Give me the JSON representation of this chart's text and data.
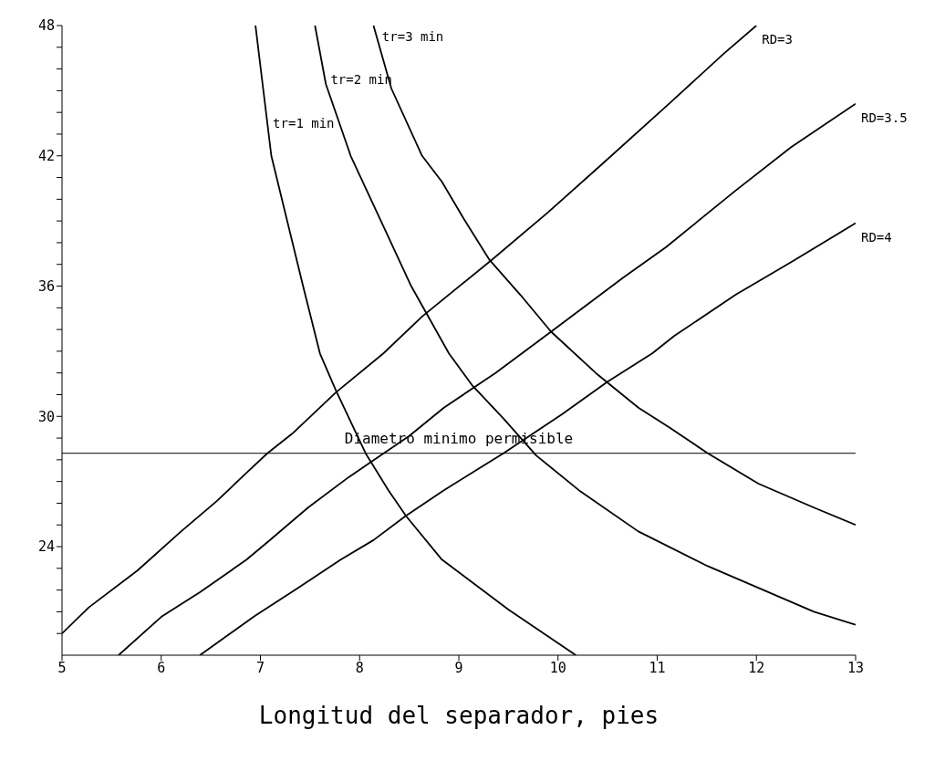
{
  "chart_data": {
    "type": "line",
    "xlabel": "Longitud del separador, pies",
    "xlim": [
      5,
      13
    ],
    "xticks": [
      5,
      6,
      7,
      8,
      9,
      10,
      11,
      12,
      13
    ],
    "ylim": [
      19,
      48
    ],
    "yticks": [
      {
        "value": 20,
        "label": null
      },
      {
        "value": 21,
        "label": null
      },
      {
        "value": 22,
        "label": null
      },
      {
        "value": 23,
        "label": null
      },
      24,
      {
        "value": 25,
        "label": null
      },
      {
        "value": 26,
        "label": null
      },
      {
        "value": 27,
        "label": null
      },
      {
        "value": 28,
        "label": null
      },
      {
        "value": 29,
        "label": null
      },
      30,
      {
        "value": 31,
        "label": null
      },
      {
        "value": 32,
        "label": null
      },
      {
        "value": 33,
        "label": null
      },
      {
        "value": 34,
        "label": null
      },
      {
        "value": 35,
        "label": null
      },
      36,
      {
        "value": 37,
        "label": null
      },
      {
        "value": 38,
        "label": null
      },
      {
        "value": 39,
        "label": null
      },
      {
        "value": 40,
        "label": null
      },
      {
        "value": 41,
        "label": null
      },
      42,
      {
        "value": 43,
        "label": null
      },
      {
        "value": 44,
        "label": null
      },
      {
        "value": 45,
        "label": null
      },
      {
        "value": 46,
        "label": null
      },
      {
        "value": 47,
        "label": null
      },
      48
    ],
    "grid": false,
    "marker": "none",
    "line_style": "solid",
    "ref_lines": [
      {
        "axis": "y",
        "value": 28.3,
        "label": "Diametro minimo permisible",
        "color": "#000000"
      }
    ],
    "series": [
      {
        "name": "tr=1 min",
        "color": "#000000",
        "x": [
          6.95,
          7.11,
          7.43,
          7.6,
          7.76,
          8.06,
          8.29,
          8.47,
          8.83,
          9.5,
          10.18
        ],
        "values": [
          48,
          42,
          36,
          32.9,
          31.2,
          28.3,
          26.6,
          25.4,
          23.4,
          21.1,
          19
        ]
      },
      {
        "name": "tr=2 min",
        "color": "#000000",
        "x": [
          7.55,
          7.66,
          7.91,
          8.52,
          8.9,
          9.14,
          9.45,
          9.78,
          10.21,
          10.81,
          11.51,
          12.58,
          13
        ],
        "values": [
          48,
          45.3,
          42,
          36,
          32.9,
          31.4,
          29.9,
          28.2,
          26.6,
          24.7,
          23.1,
          21,
          20.4
        ]
      },
      {
        "name": "tr=3 min",
        "color": "#000000",
        "x": [
          8.14,
          8.32,
          8.63,
          8.83,
          9.05,
          9.31,
          9.62,
          9.93,
          10.38,
          10.81,
          11.12,
          11.51,
          12.02,
          12.58,
          13
        ],
        "values": [
          48,
          45.1,
          42,
          40.8,
          39.1,
          37.2,
          35.6,
          33.9,
          32,
          30.4,
          29.5,
          28.3,
          26.9,
          25.8,
          25
        ]
      },
      {
        "name": "RD=3",
        "color": "#000000",
        "x": [
          5,
          5.27,
          5.76,
          6.2,
          6.56,
          6.86,
          7.07,
          7.32,
          7.76,
          8.24,
          8.63,
          9.33,
          9.9,
          10.44,
          11.12,
          11.67,
          12
        ],
        "values": [
          20,
          21.2,
          22.9,
          24.7,
          26.1,
          27.4,
          28.3,
          29.2,
          31.1,
          32.9,
          34.6,
          37.2,
          39.4,
          41.6,
          44.4,
          46.7,
          48
        ]
      },
      {
        "name": "RD=3.5",
        "color": "#000000",
        "x": [
          5.57,
          6.01,
          6.39,
          6.86,
          7.07,
          7.48,
          7.89,
          8.5,
          8.85,
          9.37,
          9.93,
          10.66,
          11.09,
          11.79,
          12.35,
          13
        ],
        "values": [
          19,
          20.8,
          21.9,
          23.4,
          24.2,
          25.8,
          27.2,
          29.1,
          30.4,
          32,
          33.9,
          36.4,
          37.8,
          40.4,
          42.4,
          44.4
        ]
      },
      {
        "name": "RD=4",
        "color": "#000000",
        "x": [
          6.39,
          6.94,
          7.38,
          7.81,
          8.14,
          8.46,
          8.85,
          9.45,
          10.04,
          10.5,
          10.95,
          11.17,
          11.79,
          12.35,
          13
        ],
        "values": [
          19,
          20.8,
          22.1,
          23.4,
          24.3,
          25.4,
          26.6,
          28.3,
          30.1,
          31.6,
          32.9,
          33.7,
          35.6,
          37.1,
          38.9
        ]
      }
    ]
  }
}
